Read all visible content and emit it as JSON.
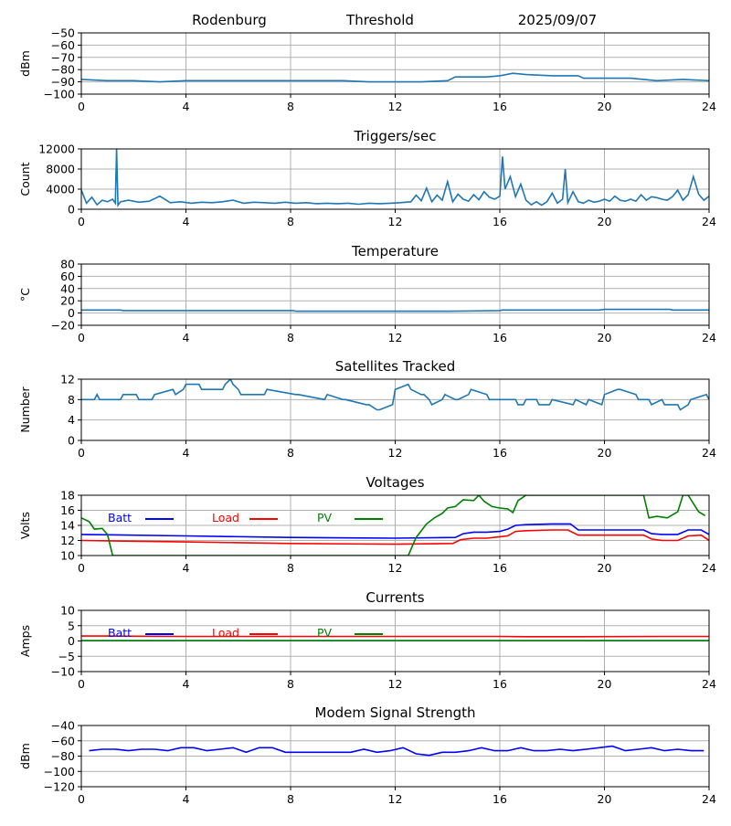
{
  "header": {
    "station": "Rodenburg",
    "mode": "Threshold",
    "date": "2025/09/07"
  },
  "chart_data": [
    {
      "id": "signal",
      "type": "line",
      "title": "",
      "ylabel": "dBm",
      "xlim": [
        0,
        24
      ],
      "ylim": [
        -100,
        -50
      ],
      "xticks": [
        0,
        4,
        8,
        12,
        16,
        20,
        24
      ],
      "yticks": [
        -100,
        -90,
        -80,
        -70,
        -60,
        -50
      ],
      "grid": true,
      "series": [
        {
          "color": "#1f77b4",
          "x": [
            0,
            1,
            2,
            3,
            4,
            5,
            6,
            7,
            8,
            9,
            10,
            11,
            12,
            13,
            14,
            14.3,
            15,
            15.5,
            16,
            16.5,
            17,
            18,
            19,
            19.2,
            20,
            21,
            22,
            23,
            24
          ],
          "y": [
            -88,
            -89,
            -89,
            -90,
            -89,
            -89,
            -89,
            -89,
            -89,
            -89,
            -89,
            -90,
            -90,
            -90,
            -89,
            -86,
            -86,
            -86,
            -85,
            -83,
            -84,
            -85,
            -85,
            -87,
            -87,
            -87,
            -89,
            -88,
            -89
          ]
        }
      ]
    },
    {
      "id": "triggers",
      "type": "line",
      "title": "Triggers/sec",
      "ylabel": "Count",
      "xlim": [
        0,
        24
      ],
      "ylim": [
        0,
        12000
      ],
      "xticks": [
        0,
        4,
        8,
        12,
        16,
        20,
        24
      ],
      "yticks": [
        0,
        4000,
        8000,
        12000
      ],
      "grid": true,
      "series": [
        {
          "color": "#1f77b4",
          "x": [
            0,
            0.2,
            0.4,
            0.6,
            0.8,
            1.0,
            1.2,
            1.3,
            1.35,
            1.4,
            1.5,
            1.8,
            2.2,
            2.6,
            3.0,
            3.4,
            3.8,
            4.2,
            4.6,
            5.0,
            5.4,
            5.8,
            6.2,
            6.6,
            7.0,
            7.4,
            7.8,
            8.2,
            8.6,
            9.0,
            9.4,
            9.8,
            10.2,
            10.6,
            11.0,
            11.4,
            11.8,
            12.2,
            12.6,
            12.8,
            13.0,
            13.2,
            13.4,
            13.6,
            13.8,
            14.0,
            14.2,
            14.4,
            14.6,
            14.8,
            15.0,
            15.2,
            15.4,
            15.6,
            15.8,
            16.0,
            16.1,
            16.2,
            16.4,
            16.6,
            16.8,
            17.0,
            17.2,
            17.4,
            17.6,
            17.8,
            18.0,
            18.2,
            18.4,
            18.5,
            18.6,
            18.8,
            19.0,
            19.2,
            19.4,
            19.6,
            19.8,
            20.0,
            20.2,
            20.4,
            20.6,
            20.8,
            21.0,
            21.2,
            21.4,
            21.6,
            21.8,
            22.0,
            22.2,
            22.4,
            22.6,
            22.8,
            23.0,
            23.2,
            23.4,
            23.6,
            23.8,
            24
          ],
          "y": [
            3800,
            1200,
            2400,
            900,
            1800,
            1500,
            2000,
            1200,
            12000,
            800,
            1500,
            1800,
            1400,
            1600,
            2600,
            1300,
            1500,
            1200,
            1400,
            1300,
            1500,
            1800,
            1200,
            1400,
            1300,
            1200,
            1400,
            1200,
            1300,
            1100,
            1200,
            1100,
            1200,
            1000,
            1200,
            1100,
            1200,
            1300,
            1500,
            2800,
            1700,
            4200,
            1500,
            2800,
            1800,
            5500,
            1500,
            3000,
            2000,
            1600,
            2900,
            1900,
            3500,
            2400,
            2000,
            2600,
            10500,
            4000,
            6500,
            2500,
            5000,
            1800,
            900,
            1500,
            800,
            1500,
            3200,
            1200,
            2000,
            8000,
            1300,
            3500,
            1500,
            1200,
            1800,
            1400,
            1600,
            2000,
            1600,
            2600,
            1800,
            1600,
            2000,
            1600,
            2900,
            1800,
            2500,
            2300,
            2000,
            1800,
            2500,
            3800,
            1800,
            2900,
            6500,
            3000,
            1800,
            2600
          ]
        }
      ]
    },
    {
      "id": "temperature",
      "type": "line",
      "title": "Temperature",
      "ylabel": "°C",
      "xlim": [
        0,
        24
      ],
      "ylim": [
        -20,
        80
      ],
      "xticks": [
        0,
        4,
        8,
        12,
        16,
        20,
        24
      ],
      "yticks": [
        -20,
        0,
        20,
        40,
        60,
        80
      ],
      "grid": true,
      "series": [
        {
          "color": "#1f77b4",
          "x": [
            0,
            1.5,
            1.6,
            8.1,
            8.2,
            14,
            16,
            16.1,
            19.8,
            20,
            22.5,
            22.6,
            24
          ],
          "y": [
            5,
            5,
            4,
            4,
            3,
            3,
            4,
            5,
            5,
            6,
            6,
            5,
            5
          ]
        }
      ]
    },
    {
      "id": "satellites",
      "type": "line",
      "title": "Satellites Tracked",
      "ylabel": "Number",
      "xlim": [
        0,
        24
      ],
      "ylim": [
        0,
        12
      ],
      "xticks": [
        0,
        4,
        8,
        12,
        16,
        20,
        24
      ],
      "yticks": [
        0,
        4,
        8,
        12
      ],
      "grid": true,
      "series": [
        {
          "color": "#1f77b4",
          "x": [
            0,
            0.5,
            0.6,
            0.7,
            1.5,
            1.6,
            2.1,
            2.2,
            2.7,
            2.8,
            3.5,
            3.6,
            3.9,
            4.0,
            4.5,
            4.6,
            5.4,
            5.5,
            5.7,
            5.8,
            6.0,
            6.1,
            7.0,
            7.1,
            8.2,
            8.3,
            9.3,
            9.4,
            10.0,
            10.1,
            10.9,
            11.0,
            11.3,
            11.4,
            11.9,
            12.0,
            12.5,
            12.6,
            13.0,
            13.1,
            13.3,
            13.4,
            13.8,
            13.9,
            14.3,
            14.4,
            14.8,
            14.9,
            15.5,
            15.6,
            16.1,
            16.2,
            16.6,
            16.7,
            16.9,
            17.0,
            17.4,
            17.5,
            17.9,
            18.0,
            18.8,
            18.9,
            19.3,
            19.4,
            19.9,
            20.0,
            20.5,
            20.6,
            21.2,
            21.3,
            21.7,
            21.8,
            22.2,
            22.3,
            22.8,
            22.9,
            23.2,
            23.3,
            23.9,
            24.0
          ],
          "y": [
            8,
            8,
            9,
            8,
            8,
            9,
            9,
            8,
            8,
            9,
            10,
            9,
            10,
            11,
            11,
            10,
            10,
            11,
            12,
            11,
            10,
            9,
            9,
            10,
            9,
            9,
            8,
            9,
            8,
            8,
            7,
            7,
            6,
            6,
            7,
            10,
            11,
            10,
            9,
            9,
            8,
            7,
            8,
            9,
            8,
            8,
            9,
            10,
            9,
            8,
            8,
            8,
            8,
            7,
            7,
            8,
            8,
            7,
            7,
            8,
            7,
            8,
            7,
            8,
            7,
            9,
            10,
            10,
            9,
            8,
            8,
            7,
            8,
            7,
            7,
            6,
            7,
            8,
            9,
            8
          ]
        }
      ]
    },
    {
      "id": "voltages",
      "type": "line",
      "title": "Voltages",
      "ylabel": "Volts",
      "xlim": [
        0,
        24
      ],
      "ylim": [
        10,
        18
      ],
      "xticks": [
        0,
        4,
        8,
        12,
        16,
        20,
        24
      ],
      "yticks": [
        10,
        12,
        14,
        16,
        18
      ],
      "grid": true,
      "legend": "inside-top-left",
      "series": [
        {
          "name": "Batt",
          "color": "#0000ff",
          "x": [
            0,
            4,
            8,
            12,
            14.3,
            14.6,
            15,
            15.5,
            16,
            16.3,
            16.6,
            17,
            18,
            18.7,
            19,
            20,
            21.5,
            21.8,
            22.2,
            22.8,
            23.2,
            23.7,
            24
          ],
          "y": [
            12.8,
            12.6,
            12.4,
            12.3,
            12.4,
            12.9,
            13.1,
            13.1,
            13.2,
            13.5,
            14.0,
            14.1,
            14.2,
            14.2,
            13.4,
            13.4,
            13.4,
            12.9,
            12.8,
            12.8,
            13.4,
            13.4,
            12.8
          ]
        },
        {
          "name": "Load",
          "color": "#ff0000",
          "x": [
            0,
            4,
            8,
            12,
            14.2,
            14.5,
            15,
            15.5,
            16,
            16.3,
            16.6,
            17,
            18,
            18.6,
            19,
            20,
            21.5,
            21.8,
            22.2,
            22.8,
            23.2,
            23.7,
            24
          ],
          "y": [
            12.0,
            11.8,
            11.6,
            11.5,
            11.6,
            12.1,
            12.3,
            12.3,
            12.5,
            12.6,
            13.2,
            13.3,
            13.4,
            13.4,
            12.7,
            12.7,
            12.7,
            12.2,
            12.0,
            12.0,
            12.6,
            12.7,
            12.0
          ]
        },
        {
          "name": "PV",
          "color": "#008000",
          "x": [
            0,
            0.3,
            0.5,
            0.8,
            1.0,
            1.2,
            12.5,
            12.8,
            13.2,
            13.5,
            13.8,
            14.0,
            14.3,
            14.6,
            15.0,
            15.2,
            15.4,
            15.7,
            16.0,
            16.3,
            16.5,
            16.7,
            17.0,
            21.5,
            21.7,
            22.0,
            22.4,
            22.8,
            23.0,
            23.2,
            23.6,
            23.85
          ],
          "y": [
            15.0,
            14.5,
            13.5,
            13.6,
            12.8,
            10.0,
            10.0,
            12.4,
            14.2,
            15.0,
            15.6,
            16.3,
            16.5,
            17.4,
            17.3,
            18.0,
            17.2,
            16.5,
            16.3,
            16.2,
            15.7,
            17.3,
            18.0,
            18.0,
            15.0,
            15.2,
            15.0,
            15.8,
            18.0,
            18.0,
            15.8,
            15.3
          ]
        }
      ]
    },
    {
      "id": "currents",
      "type": "line",
      "title": "Currents",
      "ylabel": "Amps",
      "xlim": [
        0,
        24
      ],
      "ylim": [
        -10,
        10
      ],
      "xticks": [
        0,
        4,
        8,
        12,
        16,
        20,
        24
      ],
      "yticks": [
        -10,
        -5,
        0,
        5,
        10
      ],
      "grid": true,
      "legend": "inside-top-left",
      "series": [
        {
          "name": "Batt",
          "color": "#0000ff",
          "x": [
            0,
            24
          ],
          "y": [
            0.1,
            0.1
          ]
        },
        {
          "name": "Load",
          "color": "#ff0000",
          "x": [
            0,
            1,
            4,
            8,
            12,
            14,
            16,
            17,
            19,
            22,
            24
          ],
          "y": [
            1.6,
            1.6,
            1.5,
            1.5,
            1.5,
            1.5,
            1.5,
            1.4,
            1.4,
            1.5,
            1.5
          ]
        },
        {
          "name": "PV",
          "color": "#008000",
          "x": [
            0,
            24
          ],
          "y": [
            0.1,
            0.1
          ]
        }
      ]
    },
    {
      "id": "modem",
      "type": "line",
      "title": "Modem Signal Strength",
      "ylabel": "dBm",
      "xlim": [
        0,
        24
      ],
      "ylim": [
        -120,
        -40
      ],
      "xticks": [
        0,
        4,
        8,
        12,
        16,
        20,
        24
      ],
      "yticks": [
        -120,
        -100,
        -80,
        -60,
        -40
      ],
      "grid": true,
      "series": [
        {
          "color": "#0000ff",
          "x": [
            0.3,
            0.8,
            1.3,
            1.8,
            2.3,
            2.8,
            3.3,
            3.8,
            4.3,
            4.8,
            5.3,
            5.8,
            6.3,
            6.8,
            7.3,
            7.8,
            8.3,
            8.8,
            9.3,
            9.8,
            10.3,
            10.8,
            11.3,
            11.8,
            12.3,
            12.8,
            13.3,
            13.8,
            14.3,
            14.8,
            15.3,
            15.8,
            16.3,
            16.8,
            17.3,
            17.8,
            18.3,
            18.8,
            19.3,
            19.8,
            20.3,
            20.8,
            21.3,
            21.8,
            22.3,
            22.8,
            23.3,
            23.8
          ],
          "y": [
            -73,
            -71,
            -71,
            -73,
            -71,
            -71,
            -73,
            -69,
            -69,
            -73,
            -71,
            -69,
            -75,
            -69,
            -69,
            -75,
            -75,
            -75,
            -75,
            -75,
            -75,
            -71,
            -75,
            -73,
            -69,
            -77,
            -79,
            -75,
            -75,
            -73,
            -69,
            -73,
            -73,
            -69,
            -73,
            -73,
            -71,
            -73,
            -71,
            -69,
            -67,
            -73,
            -71,
            -69,
            -73,
            -71,
            -73,
            -73
          ]
        }
      ]
    }
  ]
}
